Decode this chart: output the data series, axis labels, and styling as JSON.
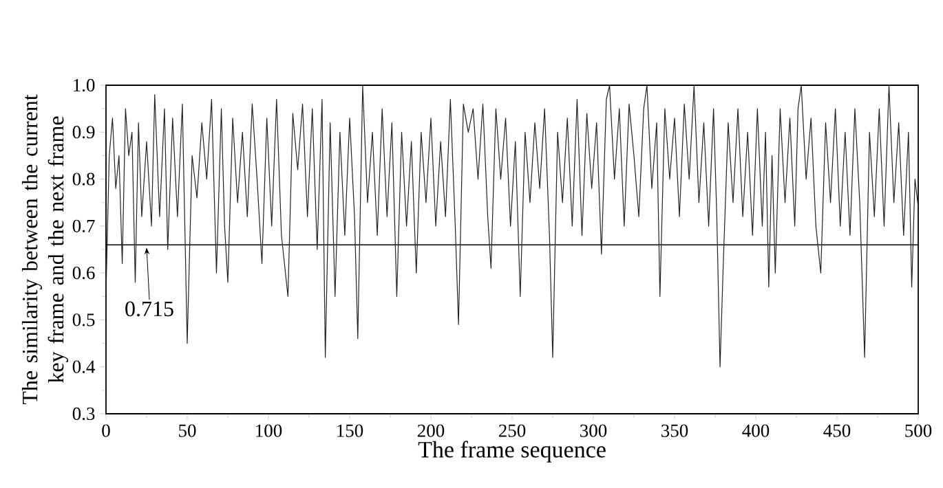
{
  "chart_data": {
    "type": "line",
    "xlabel": "The frame sequence",
    "ylabel": "The similarity between the current key frame and the next frame",
    "xlim": [
      0,
      500
    ],
    "ylim": [
      0.3,
      1.0
    ],
    "xticks": [
      0,
      50,
      100,
      150,
      200,
      250,
      300,
      350,
      400,
      450,
      500
    ],
    "yticks": [
      {
        "value": 0.3,
        "label": "0.3"
      },
      {
        "value": 0.4,
        "label": "0.4"
      },
      {
        "value": 0.5,
        "label": "0.5"
      },
      {
        "value": 0.6,
        "label": "0.6"
      },
      {
        "value": 0.7,
        "label": "0.7"
      },
      {
        "value": 0.8,
        "label": "0.8"
      },
      {
        "value": 0.9,
        "label": "0.9"
      },
      {
        "value": 1.0,
        "label": "1.0"
      }
    ],
    "ref_lines": [
      {
        "axis": "y",
        "value": 0.66,
        "color": "#000000"
      }
    ],
    "annotations": [
      {
        "text": "0.715",
        "x": 25,
        "y": 0.66
      }
    ],
    "marker": "none",
    "line_style": "solid",
    "series": [
      {
        "color": "#222222",
        "x": [
          0,
          2,
          4,
          6,
          8,
          10,
          12,
          14,
          16,
          18,
          20,
          22,
          25,
          28,
          30,
          33,
          36,
          38,
          41,
          44,
          47,
          50,
          53,
          56,
          59,
          62,
          65,
          68,
          71,
          73,
          75,
          78,
          81,
          84,
          87,
          90,
          93,
          96,
          99,
          102,
          105,
          108,
          112,
          115,
          118,
          121,
          124,
          127,
          130,
          133,
          135,
          138,
          141,
          144,
          147,
          150,
          153,
          155,
          158,
          161,
          164,
          167,
          170,
          173,
          176,
          179,
          182,
          185,
          188,
          191,
          194,
          197,
          200,
          203,
          206,
          209,
          212,
          215,
          217,
          220,
          223,
          226,
          229,
          232,
          235,
          237,
          240,
          243,
          246,
          249,
          252,
          255,
          258,
          261,
          264,
          267,
          270,
          273,
          275,
          278,
          281,
          284,
          287,
          290,
          293,
          296,
          299,
          302,
          305,
          308,
          310,
          313,
          316,
          319,
          322,
          325,
          328,
          331,
          333,
          336,
          339,
          341,
          344,
          347,
          350,
          353,
          356,
          359,
          362,
          365,
          368,
          371,
          374,
          376,
          378,
          380,
          383,
          386,
          389,
          392,
          395,
          398,
          401,
          404,
          406,
          408,
          410,
          412,
          415,
          418,
          421,
          424,
          426,
          428,
          431,
          434,
          437,
          440,
          443,
          446,
          449,
          452,
          455,
          458,
          461,
          464,
          467,
          470,
          473,
          476,
          479,
          482,
          485,
          488,
          491,
          494,
          496,
          498,
          500
        ],
        "values": [
          0.56,
          0.85,
          0.93,
          0.78,
          0.85,
          0.62,
          0.95,
          0.85,
          0.9,
          0.58,
          0.92,
          0.72,
          0.88,
          0.7,
          0.98,
          0.72,
          0.95,
          0.65,
          0.93,
          0.72,
          0.96,
          0.45,
          0.85,
          0.76,
          0.92,
          0.8,
          0.97,
          0.6,
          0.95,
          0.7,
          0.58,
          0.93,
          0.75,
          0.9,
          0.72,
          0.96,
          0.8,
          0.62,
          0.93,
          0.7,
          0.97,
          0.68,
          0.55,
          0.94,
          0.82,
          0.96,
          0.72,
          0.95,
          0.65,
          0.97,
          0.42,
          0.92,
          0.55,
          0.9,
          0.68,
          0.93,
          0.72,
          0.46,
          1.0,
          0.75,
          0.9,
          0.68,
          0.95,
          0.72,
          0.92,
          0.55,
          0.9,
          0.7,
          0.88,
          0.6,
          0.9,
          0.75,
          0.93,
          0.7,
          0.88,
          0.72,
          0.97,
          0.7,
          0.49,
          0.96,
          0.9,
          0.95,
          0.8,
          0.96,
          0.72,
          0.61,
          0.95,
          0.8,
          0.93,
          0.7,
          0.88,
          0.55,
          0.9,
          0.75,
          0.92,
          0.78,
          0.95,
          0.68,
          0.42,
          0.9,
          0.75,
          0.93,
          0.7,
          0.97,
          0.68,
          0.94,
          0.78,
          0.92,
          0.64,
          0.97,
          1.0,
          0.8,
          0.95,
          0.7,
          0.96,
          0.85,
          0.72,
          0.95,
          1.0,
          0.78,
          0.92,
          0.55,
          0.95,
          0.8,
          0.93,
          0.72,
          0.96,
          0.8,
          1.0,
          0.75,
          0.92,
          0.7,
          0.95,
          0.72,
          0.4,
          0.62,
          0.92,
          0.75,
          0.95,
          0.72,
          0.9,
          0.68,
          0.95,
          0.7,
          0.9,
          0.57,
          0.85,
          0.6,
          0.95,
          0.75,
          0.93,
          0.7,
          0.95,
          1.0,
          0.8,
          0.93,
          0.7,
          0.6,
          0.92,
          0.75,
          0.95,
          0.7,
          0.9,
          0.68,
          0.95,
          0.75,
          0.42,
          0.9,
          0.72,
          0.95,
          0.7,
          1.0,
          0.75,
          0.92,
          0.68,
          0.9,
          0.57,
          0.8,
          0.74
        ]
      }
    ]
  }
}
